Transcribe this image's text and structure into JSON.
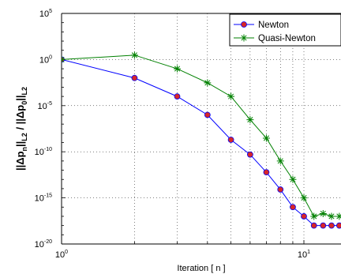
{
  "chart_data": {
    "type": "line",
    "title": "",
    "xlabel": "Iteration [ n ]",
    "ylabel": {
      "main1": "||Δp",
      "sub1": "n",
      "main2": "||",
      "sub2": "L2",
      "main3": " / ||Δp",
      "sub3": "0",
      "main4": "||",
      "sub4": "L2"
    },
    "x_scale": "log",
    "y_scale": "log",
    "xlim": [
      1,
      14
    ],
    "ylim": [
      1e-20,
      100000.0
    ],
    "x_ticks": [
      {
        "value": 1,
        "base": "10",
        "exp": "0"
      },
      {
        "value": 10,
        "base": "10",
        "exp": "1"
      }
    ],
    "y_ticks": [
      {
        "value": 100000.0,
        "base": "10",
        "exp": "5"
      },
      {
        "value": 1,
        "base": "10",
        "exp": "0"
      },
      {
        "value": 1e-05,
        "base": "10",
        "exp": "-5"
      },
      {
        "value": 1e-10,
        "base": "10",
        "exp": "-10"
      },
      {
        "value": 1e-15,
        "base": "10",
        "exp": "-15"
      },
      {
        "value": 1e-20,
        "base": "10",
        "exp": "-20"
      }
    ],
    "grid": true,
    "legend_position": "top-right",
    "series": [
      {
        "name": "Newton",
        "color": "#0000ff",
        "marker": "circle",
        "marker_fill": "#d62728",
        "x": [
          1,
          2,
          3,
          4,
          5,
          6,
          7,
          8,
          9,
          10,
          11,
          12,
          13,
          14
        ],
        "y": [
          1,
          0.01,
          0.0001,
          1e-06,
          2e-09,
          5e-11,
          6e-13,
          8e-15,
          1e-16,
          1e-17,
          1e-18,
          1e-18,
          1e-18,
          1e-18
        ]
      },
      {
        "name": "Quasi-Newton",
        "color": "#008000",
        "marker": "star",
        "x": [
          1,
          2,
          3,
          4,
          5,
          6,
          7,
          8,
          9,
          10,
          11,
          12,
          13,
          14
        ],
        "y": [
          1,
          3,
          0.1,
          0.003,
          0.0001,
          3e-07,
          3e-09,
          1e-11,
          1e-13,
          1e-15,
          1e-17,
          2e-17,
          1e-17,
          1e-17
        ]
      }
    ]
  }
}
